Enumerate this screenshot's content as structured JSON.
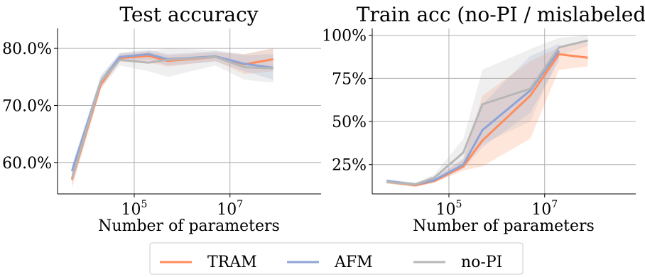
{
  "chart_data": [
    {
      "type": "line",
      "title": "Test accuracy",
      "xlabel": "Number of parameters",
      "ylabel": "",
      "xscale": "log",
      "xlim": [
        2500,
        800000000
      ],
      "ylim": [
        0.545,
        0.835
      ],
      "xticks": [
        {
          "value": 100000,
          "base": "10",
          "exp": "5"
        },
        {
          "value": 10000000,
          "base": "10",
          "exp": "7"
        }
      ],
      "yticks": [
        {
          "value": 0.6,
          "label": "60.0%"
        },
        {
          "value": 0.7,
          "label": "70.0%"
        },
        {
          "value": 0.8,
          "label": "80.0%"
        }
      ],
      "grid": true,
      "x": [
        5000,
        20000,
        50000,
        200000,
        500000,
        5000000,
        20000000,
        80000000
      ],
      "series": [
        {
          "name": "TRAM",
          "color": "#ff8c5a",
          "values": [
            0.57,
            0.737,
            0.783,
            0.787,
            0.778,
            0.785,
            0.772,
            0.781
          ],
          "lower": [
            0.555,
            0.728,
            0.777,
            0.775,
            0.768,
            0.778,
            0.755,
            0.76
          ],
          "upper": [
            0.585,
            0.745,
            0.79,
            0.795,
            0.788,
            0.793,
            0.79,
            0.8
          ]
        },
        {
          "name": "AFM",
          "color": "#8ea3d6",
          "values": [
            0.585,
            0.742,
            0.785,
            0.79,
            0.781,
            0.786,
            0.773,
            0.766
          ],
          "lower": [
            0.575,
            0.732,
            0.777,
            0.78,
            0.77,
            0.777,
            0.76,
            0.745
          ],
          "upper": [
            0.595,
            0.752,
            0.792,
            0.798,
            0.79,
            0.795,
            0.788,
            0.79
          ]
        },
        {
          "name": "no-PI",
          "color": "#b7b7b7",
          "values": [
            0.572,
            0.742,
            0.78,
            0.775,
            0.78,
            0.785,
            0.767,
            0.765
          ],
          "lower": [
            0.56,
            0.73,
            0.77,
            0.76,
            0.75,
            0.77,
            0.745,
            0.74
          ],
          "upper": [
            0.585,
            0.752,
            0.792,
            0.795,
            0.8,
            0.797,
            0.79,
            0.8
          ]
        }
      ]
    },
    {
      "type": "line",
      "title": "Train acc (no-PI / mislabeled)",
      "xlabel": "Number of parameters",
      "ylabel": "",
      "xscale": "log",
      "xlim": [
        2500,
        800000000
      ],
      "ylim": [
        0.08,
        1.04
      ],
      "xticks": [
        {
          "value": 100000,
          "base": "10",
          "exp": "5"
        },
        {
          "value": 10000000,
          "base": "10",
          "exp": "7"
        }
      ],
      "yticks": [
        {
          "value": 0.25,
          "label": "25%"
        },
        {
          "value": 0.5,
          "label": "50%"
        },
        {
          "value": 0.75,
          "label": "75%"
        },
        {
          "value": 1.0,
          "label": "100%"
        }
      ],
      "grid": true,
      "x": [
        5000,
        20000,
        50000,
        200000,
        500000,
        5000000,
        20000000,
        80000000
      ],
      "series": [
        {
          "name": "TRAM",
          "color": "#ff8c5a",
          "values": [
            0.15,
            0.13,
            0.155,
            0.24,
            0.39,
            0.65,
            0.89,
            0.87
          ],
          "lower": [
            0.14,
            0.12,
            0.145,
            0.215,
            0.24,
            0.4,
            0.8,
            0.82
          ],
          "upper": [
            0.16,
            0.14,
            0.17,
            0.28,
            0.65,
            0.85,
            0.93,
            0.96
          ]
        },
        {
          "name": "AFM",
          "color": "#8ea3d6",
          "values": [
            0.155,
            0.135,
            0.16,
            0.25,
            0.45,
            0.68,
            0.91,
            0.0
          ],
          "lower": [
            0.145,
            0.125,
            0.15,
            0.225,
            0.35,
            0.55,
            0.85,
            0.0
          ],
          "upper": [
            0.165,
            0.145,
            0.175,
            0.285,
            0.6,
            0.88,
            0.95,
            0.0
          ],
          "points": 7
        },
        {
          "name": "no-PI",
          "color": "#b7b7b7",
          "values": [
            0.15,
            0.135,
            0.175,
            0.32,
            0.6,
            0.69,
            0.93,
            0.97
          ],
          "lower": [
            0.14,
            0.125,
            0.16,
            0.25,
            0.37,
            0.5,
            0.88,
            0.94
          ],
          "upper": [
            0.16,
            0.145,
            0.195,
            0.4,
            0.8,
            0.92,
            0.985,
            1.0
          ]
        }
      ]
    }
  ],
  "legend": {
    "position": "bottom-center",
    "entries": [
      {
        "label": "TRAM",
        "color": "#ff8c5a"
      },
      {
        "label": "AFM",
        "color": "#8ea3d6"
      },
      {
        "label": "no-PI",
        "color": "#b7b7b7"
      }
    ]
  }
}
